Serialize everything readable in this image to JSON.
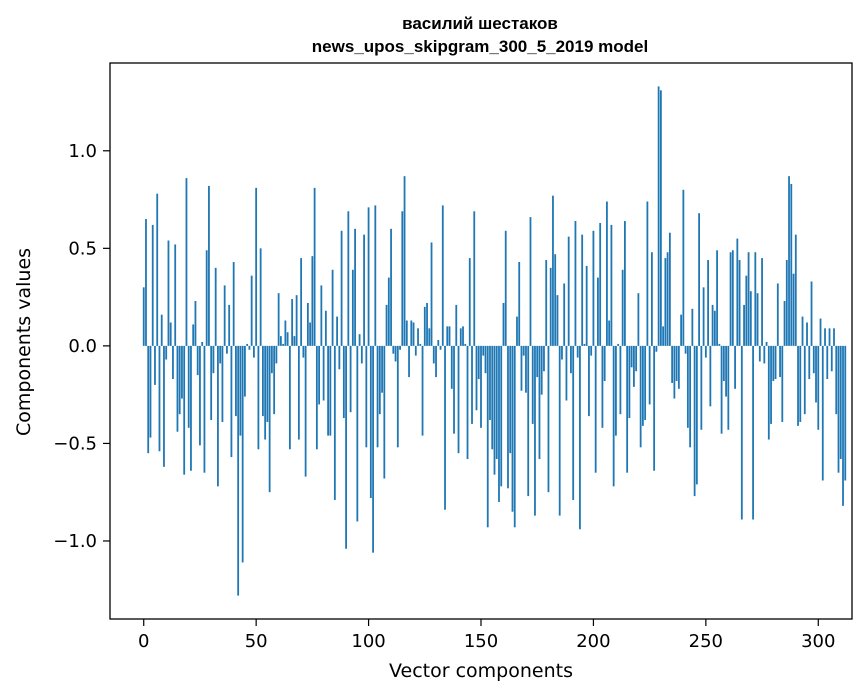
{
  "chart_data": {
    "type": "bar",
    "title": "василий шестаков",
    "subtitle": "news_upos_skipgram_300_5_2019 model",
    "xlabel": "Vector components",
    "ylabel": "Components values",
    "xlim": [
      -15,
      315
    ],
    "ylim": [
      -1.4,
      1.45
    ],
    "grid": false,
    "legend": "none",
    "bar_color": "#1f77b4",
    "x_ticks": [
      0,
      50,
      100,
      150,
      200,
      250,
      300
    ],
    "x_tick_labels": [
      "0",
      "50",
      "100",
      "150",
      "200",
      "250",
      "300"
    ],
    "y_ticks": [
      -1.0,
      -0.5,
      0.0,
      0.5,
      1.0
    ],
    "y_tick_labels": [
      "−1.0",
      "−0.5",
      "0.0",
      "0.5",
      "1.0"
    ],
    "x_start": 0,
    "values": [
      0.3,
      0.65,
      -0.55,
      -0.47,
      0.62,
      -0.2,
      0.78,
      -0.54,
      0.16,
      -0.62,
      -0.07,
      0.54,
      0.12,
      -0.17,
      0.52,
      -0.44,
      -0.35,
      -0.27,
      -0.66,
      0.86,
      -0.42,
      -0.64,
      0.11,
      0.23,
      -0.15,
      -0.51,
      0.02,
      -0.65,
      0.49,
      0.82,
      -0.38,
      -0.14,
      0.4,
      -0.72,
      -0.09,
      -0.39,
      0.31,
      -0.04,
      0.21,
      -0.57,
      0.43,
      -0.36,
      -1.28,
      -0.46,
      -1.11,
      -0.26,
      0.01,
      -0.02,
      0.36,
      -0.06,
      0.81,
      -0.53,
      0.5,
      -0.36,
      -0.48,
      -0.39,
      -0.75,
      -0.14,
      -0.35,
      -0.09,
      0.27,
      0.05,
      0.01,
      0.13,
      0.07,
      -0.53,
      0.24,
      0.05,
      0.26,
      -0.48,
      0.45,
      -0.06,
      -0.67,
      0.22,
      0.12,
      0.46,
      0.81,
      -0.53,
      -0.3,
      0.31,
      -0.28,
      0.18,
      -0.46,
      -0.46,
      0.39,
      -0.79,
      0.15,
      -0.12,
      0.59,
      -0.37,
      -1.04,
      0.69,
      -0.34,
      0.39,
      0.6,
      -0.9,
      0.06,
      -0.09,
      0.57,
      -0.52,
      0.71,
      -0.78,
      -1.06,
      0.72,
      -0.52,
      -0.35,
      -0.24,
      -0.68,
      0.21,
      0.35,
      0.6,
      -0.04,
      -0.08,
      -0.52,
      -0.02,
      0.69,
      0.87,
      0.13,
      -0.16,
      0.13,
      0.12,
      -0.05,
      0.09,
      0.01,
      -0.46,
      0.2,
      0.22,
      0.09,
      0.53,
      -0.09,
      -0.16,
      0.03,
      -0.02,
      0.72,
      -0.84,
      0.1,
      0.1,
      -0.22,
      -0.45,
      0.21,
      -0.55,
      0.09,
      0.1,
      0.01,
      -0.58,
      0.45,
      -0.4,
      0.69,
      -0.33,
      -0.17,
      -0.42,
      -0.05,
      -0.14,
      -0.93,
      -0.38,
      -0.53,
      -0.66,
      -0.58,
      -0.8,
      -0.72,
      0.22,
      0.59,
      -0.73,
      -0.55,
      -0.85,
      -0.93,
      0.15,
      0.43,
      -0.23,
      -0.05,
      -0.24,
      -0.77,
      0.66,
      -0.4,
      -0.87,
      -0.16,
      -0.58,
      -0.25,
      -0.13,
      0.44,
      -0.75,
      0.4,
      0.77,
      0.47,
      0.26,
      -0.87,
      -0.07,
      0.32,
      -0.28,
      0.56,
      -0.14,
      -0.79,
      0.64,
      -0.06,
      -0.94,
      0.57,
      0.01,
      0.41,
      -0.36,
      -0.05,
      0.59,
      -0.65,
      0.35,
      0.63,
      -0.42,
      -0.18,
      0.74,
      0.13,
      0.62,
      -0.72,
      -0.46,
      0.01,
      -0.35,
      0.39,
      0.64,
      -0.65,
      -0.37,
      -0.11,
      -0.21,
      -0.13,
      0.27,
      -0.52,
      -0.41,
      -0.38,
      0.74,
      -0.3,
      0.48,
      -0.64,
      -0.03,
      1.33,
      1.31,
      0.1,
      0.45,
      0.48,
      0.58,
      -0.19,
      -0.27,
      -0.18,
      -0.22,
      0.16,
      0.8,
      -0.04,
      -0.42,
      -0.52,
      0.19,
      -0.77,
      -0.71,
      0.68,
      -0.43,
      0.3,
      -0.06,
      0.44,
      -0.31,
      0.21,
      0.18,
      0.49,
      0.01,
      -0.45,
      -0.18,
      -0.26,
      -0.43,
      0.48,
      0.49,
      -0.22,
      0.55,
      0.44,
      -0.89,
      0.21,
      0.36,
      0.48,
      0.28,
      -0.89,
      0.48,
      0.27,
      -0.08,
      0.45,
      -0.09,
      0.02,
      -0.48,
      -0.4,
      -0.18,
      -0.17,
      0.32,
      -0.16,
      -0.39,
      0.23,
      0.44,
      0.87,
      0.83,
      0.37,
      0.57,
      -0.41,
      -0.39,
      0.15,
      -0.35,
      0.12,
      -0.17,
      0.33,
      -0.14,
      -0.29,
      -0.43,
      0.14,
      -0.69,
      0.09,
      -0.17,
      0.09,
      -0.13,
      0.09,
      -0.35,
      -0.65,
      -0.58,
      -0.82,
      -0.69
    ]
  }
}
